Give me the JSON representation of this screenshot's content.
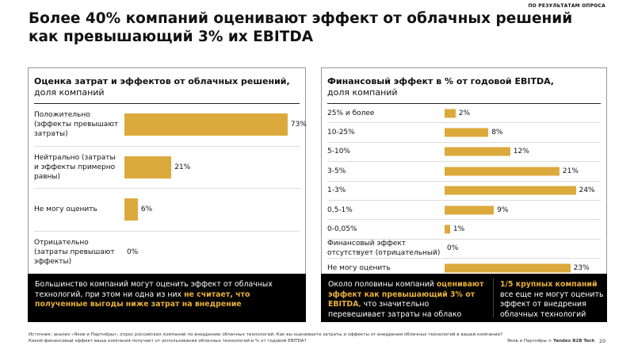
{
  "tag": "ПО РЕЗУЛЬТАТАМ ОПРОСА",
  "title": "Более 40% компаний оценивают эффект от облачных решений как превышающий 3% их EBITDA",
  "accent": "#dcaa3c",
  "chart_data": [
    {
      "type": "bar",
      "orientation": "horizontal",
      "title": "Оценка затрат и эффектов от облачных решений,",
      "subtitle": "доля компаний",
      "categories": [
        "Положительно (эффекты превышают затраты)",
        "Нейтрально (затраты и эффекты примерно равны)",
        "Не могу оценить",
        "Отрицательно (затраты превышают эффекты)"
      ],
      "values": [
        73,
        21,
        6,
        0
      ],
      "labels": [
        "73%",
        "21%",
        "6%",
        "0%"
      ],
      "xlim": [
        0,
        75
      ]
    },
    {
      "type": "bar",
      "orientation": "horizontal",
      "title": "Финансовый эффект в % от годовой EBITDA,",
      "subtitle": "доля компаний",
      "categories": [
        "25% и более",
        "10-25%",
        "5-10%",
        "3-5%",
        "1-3%",
        "0,5-1%",
        "0-0,05%",
        "Финансовый эффект отсутствует (отрицательный)",
        "Не могу оценить"
      ],
      "values": [
        2,
        8,
        12,
        21,
        24,
        9,
        1,
        0,
        23
      ],
      "labels": [
        "2%",
        "8%",
        "12%",
        "21%",
        "24%",
        "9%",
        "1%",
        "0%",
        "23%"
      ],
      "xlim": [
        0,
        28
      ]
    }
  ],
  "left_note": {
    "p1": "Большинство компаний могут оценить эффект от облачных технологий, при этом ни одна из них ",
    "h1": "не считает, что полученные выгоды ниже затрат на внедрение"
  },
  "right_note": {
    "p1": "Около половины компаний ",
    "h1": "оценивают эффект как превышающий 3% от EBITDA",
    "p2": ", что значительно перевешивает затраты на облако",
    "h2": "1/5 крупных компаний",
    "p3": " все еще не могут оценить эффект от внедрения облачных технологий"
  },
  "source": "Источник: анализ «Яков и Партнёры», опрос российских компаний по внедрению облачных технологий: Как вы оцениваете затраты и эффекты от внедрения облачных технологий в вашей компании? Какой финансовый эффект ваша компания получает от использования облачных технологий в % от годовой EBITDA?",
  "logo": {
    "a": "Яков и Партнёры",
    "x": "×",
    "b": "Yandex B2B Tech"
  },
  "page": "20"
}
